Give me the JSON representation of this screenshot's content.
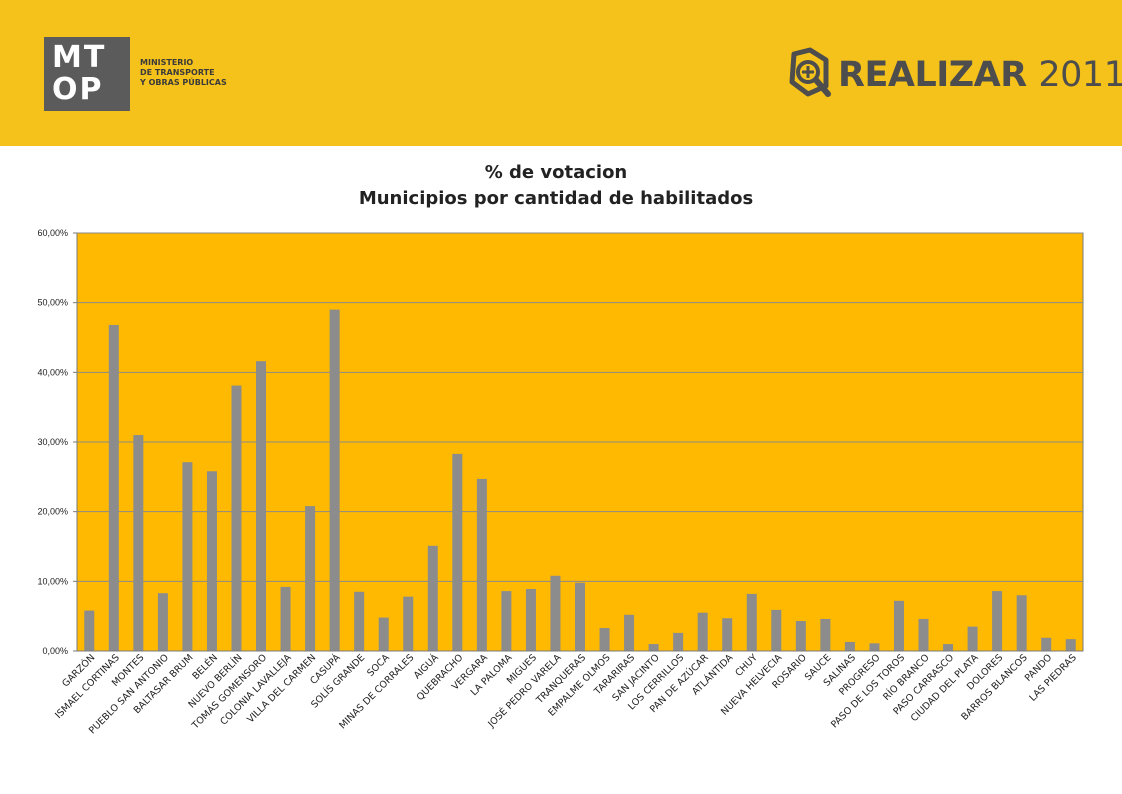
{
  "header": {
    "background": "#f5c21b",
    "logo_letters_top": "MT",
    "logo_letters_bottom": "OP",
    "ministry_lines": [
      "MINISTERIO",
      "DE TRANSPORTE",
      "Y OBRAS PÚBLICAS"
    ],
    "brand_name": "REALIZAR",
    "brand_year": "2011",
    "brand_icon": "magnifier-plus-icon"
  },
  "chart_data": {
    "type": "bar",
    "title": "% de votacion",
    "subtitle": "Municipios por cantidad de habilitados",
    "plot_background": "#ffb900",
    "bar_color": "#8c8c8c",
    "grid": true,
    "ylim": [
      0,
      60
    ],
    "yticks": [
      "0,00%",
      "10,00%",
      "20,00%",
      "30,00%",
      "40,00%",
      "50,00%",
      "60,00%"
    ],
    "categories": [
      "GARZÓN",
      "ISMAEL CORTINAS",
      "MONTES",
      "PUEBLO SAN ANTONIO",
      "BALTASAR BRUM",
      "BELÉN",
      "NUEVO BERLÍN",
      "TOMÁS GOMENSORO",
      "COLONIA LAVALLEJA",
      "VILLA DEL CARMEN",
      "CASUPÁ",
      "SOLÍS GRANDE",
      "SOCA",
      "MINAS DE CORRALES",
      "AIGUÁ",
      "QUEBRACHO",
      "VERGARA",
      "LA PALOMA",
      "MIGUES",
      "JOSÉ PEDRO VARELA",
      "TRANQUERAS",
      "EMPALME OLMOS",
      "TARARIRAS",
      "SAN JACINTO",
      "LOS CERRILLOS",
      "PAN DE AZÚCAR",
      "ATLÁNTIDA",
      "CHUY",
      "NUEVA HELVECIA",
      "ROSARIO",
      "SAUCE",
      "SALINAS",
      "PROGRESO",
      "PASO DE LOS TOROS",
      "RÍO BRANCO",
      "PASO CARRASCO",
      "CIUDAD DEL PLATA",
      "DOLORES",
      "BARROS BLANCOS",
      "PANDO",
      "LAS PIEDRAS"
    ],
    "values": [
      5.8,
      46.8,
      31.0,
      8.3,
      27.1,
      25.8,
      38.1,
      41.6,
      9.2,
      20.8,
      49.0,
      8.5,
      4.8,
      7.8,
      15.1,
      28.3,
      24.7,
      8.6,
      8.9,
      10.8,
      9.8,
      3.3,
      5.2,
      1.0,
      2.6,
      5.5,
      4.7,
      8.2,
      5.9,
      4.3,
      4.6,
      1.3,
      1.1,
      7.2,
      4.6,
      1.0,
      3.5,
      8.6,
      8.0,
      1.9,
      1.7
    ]
  }
}
